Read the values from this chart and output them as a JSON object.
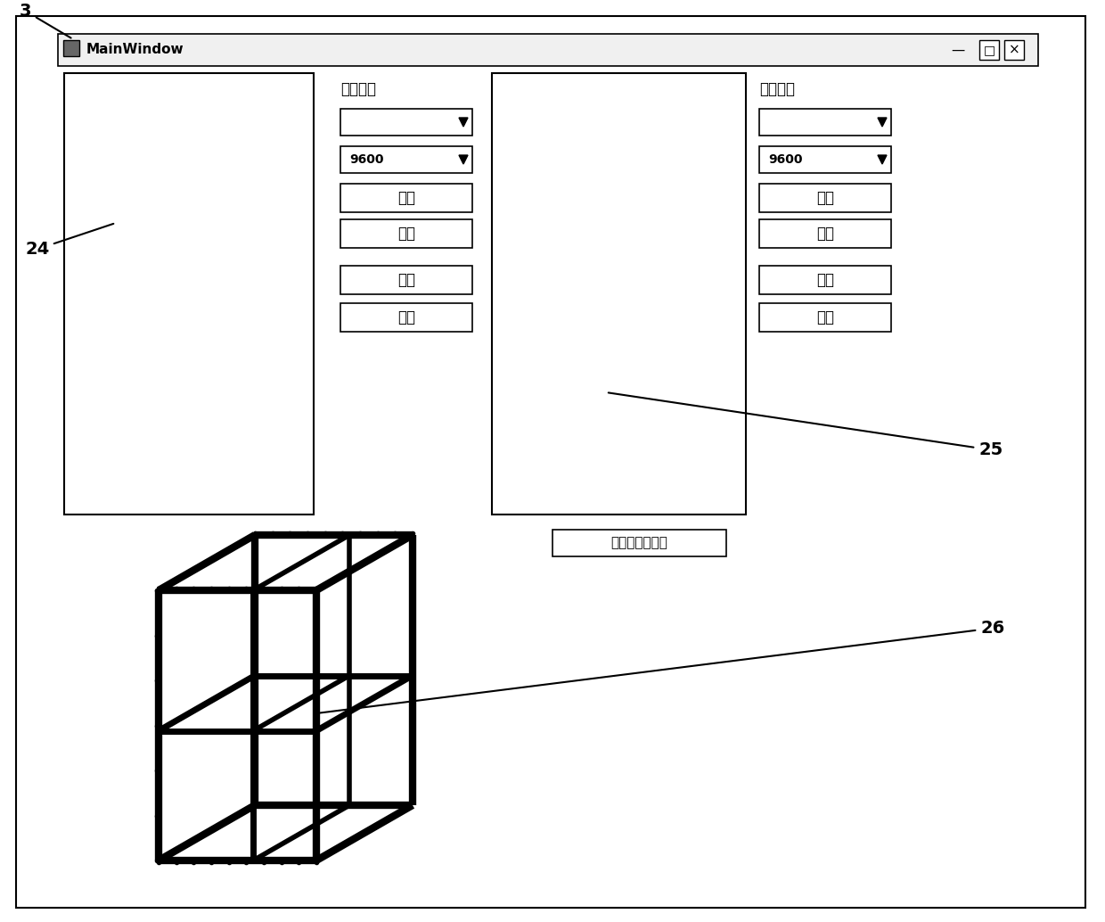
{
  "bg_color": "#ffffff",
  "window_title": "MainWindow",
  "label_3": "3",
  "label_24": "24",
  "label_25": "25",
  "label_26": "26",
  "port_status_label": "串口状态",
  "dropdown2_text": "9600",
  "btn1_text": "打开",
  "btn2_text": "关闭",
  "btn3_text": "扫描",
  "btn4_text": "清除",
  "motion_hint_text": "运动状态提示框"
}
